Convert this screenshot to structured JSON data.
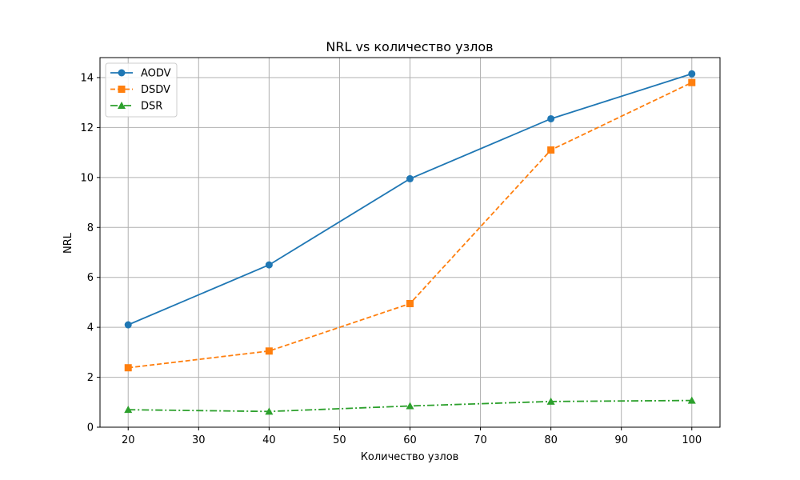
{
  "chart_data": {
    "type": "line",
    "title": "NRL vs количество узлов",
    "xlabel": "Количество узлов",
    "ylabel": "NRL",
    "xlim": [
      16,
      104
    ],
    "ylim": [
      0,
      14.8
    ],
    "xticks": [
      20,
      30,
      40,
      50,
      60,
      70,
      80,
      90,
      100
    ],
    "yticks": [
      0,
      2,
      4,
      6,
      8,
      10,
      12,
      14
    ],
    "grid": true,
    "legend_position": "top-left",
    "x": [
      20,
      40,
      60,
      80,
      100
    ],
    "series": [
      {
        "name": "AODV",
        "values": [
          4.1,
          6.5,
          9.95,
          12.35,
          14.15
        ],
        "color": "#1f77b4",
        "marker": "circle",
        "line_style": "solid"
      },
      {
        "name": "DSDV",
        "values": [
          2.38,
          3.05,
          4.95,
          11.1,
          13.8
        ],
        "color": "#ff7f0e",
        "marker": "square",
        "line_style": "dashed"
      },
      {
        "name": "DSR",
        "values": [
          0.7,
          0.63,
          0.85,
          1.03,
          1.07
        ],
        "color": "#2ca02c",
        "marker": "triangle",
        "line_style": "dashdot"
      }
    ]
  }
}
